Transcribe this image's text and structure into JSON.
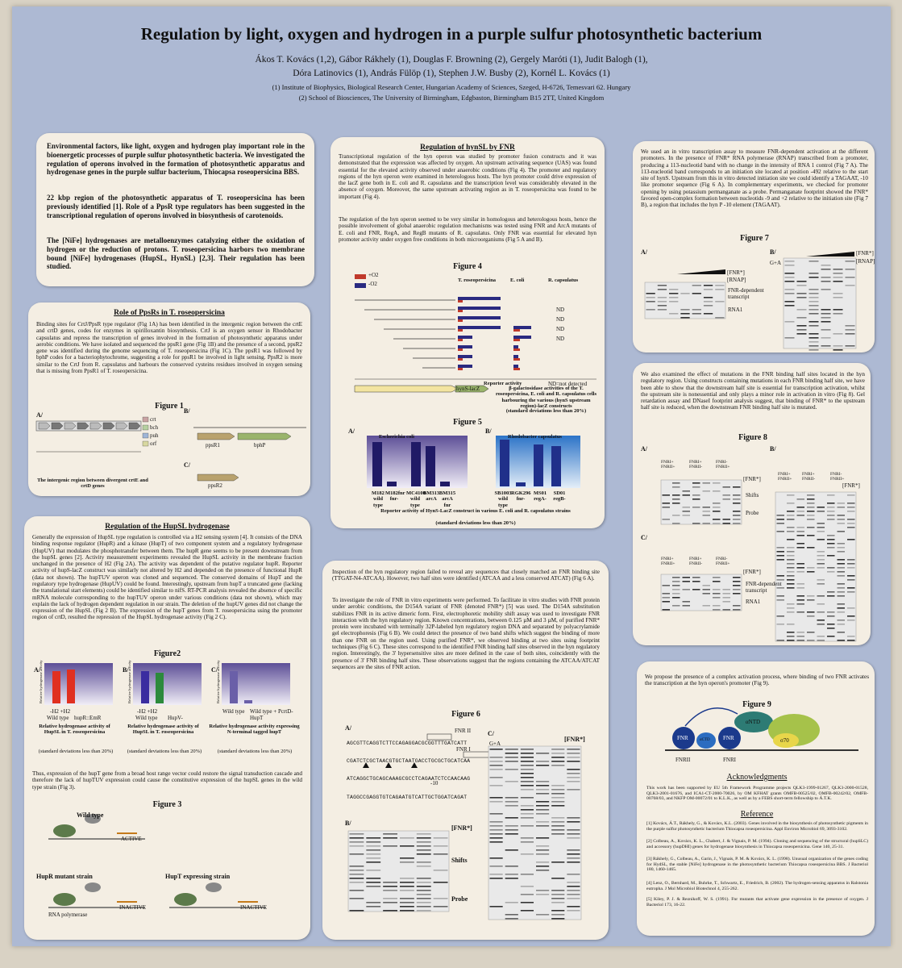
{
  "header": {
    "title": "Regulation by light, oxygen and hydrogen in a purple sulfur photosynthetic bacterium",
    "authors_line1": "Ákos T. Kovács (1,2), Gábor Rákhely (1), Douglas F. Browning (2), Gergely Maróti (1), Judit Balogh (1),",
    "authors_line2": "Dóra Latinovics (1), András Fülöp (1), Stephen J.W. Busby (2), Kornél L. Kovács (1)",
    "affiliation1": "(1) Institute of Biophysics, Biological Research Center, Hungarian Academy of Sciences, Szeged, H-6726, Temesvari 62. Hungary",
    "affiliation2": "(2) School of Biosciences, The University of Birmingham, Edgbaston, Birmingham B15 2TT, United Kingdom"
  },
  "intro": {
    "paragraphs": [
      "Environmental factors, like light, oxygen and hydrogen play important role in the bioenergetic processes of purple sulfur photosynthetic bacteria. We investigated the regulation of operons involved in the formation of photosynthetic apparatus and hydrogenase genes in the purple sulfur bacterium, Thiocapsa roseopersicina BBS.",
      "22 kbp region of the photosynthetic apparatus of T. roseopersicina has been previously identified [1]. Role of a PpsR type regulators has been suggested in the transcriptional regulation of operons involved in biosynthesis of carotenoids.",
      "The [NiFe] hydrogenases are metalloenzymes catalyzing either the oxidation of hydrogen or the reduction of protons. T. roseopersicina harbors two membrane bound [NiFe] hydrogenases (HupSL, HynSL) [2,3]. Their regulation has been studied."
    ]
  },
  "ppsr": {
    "heading": "Role of PpsRs in T. roseopersicina",
    "text": "Binding sites for CrtJ/PpsR type regulator (Fig 1A) has been identified in the intergenic region between the crtE and crtD genes, codes for enzymes in spirilloxantin biosynthesis. CrtJ is an oxygen sensor in Rhodobacter capsulatus and repress the transcription of genes involved in the formation of photosynthetic apparatus under aerobic conditions. We have isolated and sequenced the ppsR1 gene (Fig 1B) and the presence of a second, ppsR2 gene was identified during the genome sequencing of T. roseopersicina (Fig 1C). The ppsR1 was followed by bphP codes for a bacteriophytochrome, suggesting a role for ppsR1 be involved in light sensing. PpsR2 is more similar to the CrtJ from R. capsulatus and harbours the conserved cysteins residues involved in oxygen sensing that is missing from PpsR1 of T. roseopersicina.",
    "figure": {
      "title": "Figure 1",
      "labels": [
        "A/",
        "B/",
        "C/",
        "ppsR1",
        "bphP",
        "ppsR2",
        "crt",
        "bch",
        "puh",
        "orf"
      ],
      "caption": "The intergenic region between divergent crtE and crtD genes"
    }
  },
  "hupsl": {
    "heading": "Regulation of the HupSL hydrogenase",
    "text": "Generally the expression of HupSL type regulation is controlled via a H2 sensing system [4]. It consists of the DNA binding response regulator (HupR) and a kinase (HupT) of two component system and a regulatory hydrogenase (HupUV) that modulates the phosphotransfer between them. The hupR gene seems to be present downstream from the hupSL genes [2]. Activity measurement experiments revealed the HupSL activity in the membrane fraction unchanged in the presence of H2 (Fig 2A). The activity was dependent of the putative regulator hupR. Reporter activity of hupS-lacZ construct was similarly not altered by H2 and depended on the presence of functional HupR (data not shown). The hupTUV operon was cloned and sequenced. The conserved domains of HupT and the regulatory type hydrogenase (HupUV) could be found. Interestingly, upstream from hupT a truncated gene (lacking the translational start elements) could be identified similar to nifS. RT-PCR analysis revealed the absence of specific mRNA molecule corresponding to the hupTUV operon under various conditions (data not shown), which may explain the lack of hydrogen dependent regulation in our strain. The deletion of the hupUV genes did not change the expression of the HupSL (Fig 2 B). The expression of the hupT genes from T. roseopersicina using the promoter region of crtD, resulted the repression of the HupSL hydrogenase activity (Fig 2 C).",
    "figure2": {
      "title": "Figure2",
      "labels": [
        "A/",
        "B/",
        "C/",
        "-H2 +H2",
        "-H2 +H2",
        "Wild type",
        "hupR::EmR",
        "Wild type",
        "HupV-",
        "Wild type",
        "Wild type + PcrtD-HupT"
      ],
      "axis": "Relative hydrogenase activity",
      "captions": [
        "Relative hydrogenase activity of HupSL in T. roseopersicina",
        "Relative hydrogenase activity of HupSL in T. roseopersicina",
        "Relative hydrogenase activity expressing N-terminal tagged hupT"
      ],
      "note": "(standard deviations less than 20%)"
    },
    "text2": "Thus, expression of the hupT gene from a broad host range vector could restore the signal transduction cascade and therefore the lack of hupTUV expression could cause the constitutive expression of the hupSL genes in the wild type strain (Fig 3).",
    "figure3": {
      "title": "Figure 3",
      "labels": [
        "Wild type",
        "HupR mutant strain",
        "HupT expressing strain",
        "ACTIVE",
        "INACTIVE",
        "INACTIVE",
        "RNA polymerase"
      ]
    }
  },
  "hynsl": {
    "heading": "Regulation of hynSL by FNR",
    "paragraphs": [
      "Transcriptional regulation of the hyn operon was studied by promoter fusion constructs and it was demonstrated that the expression was affected by oxygen. An upstream activating sequence (UAS) was found essential for the elevated activity observed under anaerobic conditions (Fig 4). The promoter and regulatory regions of the hyn operon were examined in heterologous hosts. The hyn promoter could drive expression of the lacZ gene both in E. coli and R. capsulatus and the transcription level was considerably elevated in the absence of oxygen. Moreover, the same upstream activating region as in T. roseopersicina was found to be important (Fig 4).",
      "The regulation of the hyn operon seemed to be very similar in homologous and heterologous hosts, hence the possible involvement of global anaerobic regulation mechanisms was tested using FNR and ArcA mutants of E. coli and FNR, RegA, and RegB mutants of R. capsulatus. Only FNR was essential for elevated hyn promoter activity under oxygen free conditions in both microorganisms (Fig 5 A and B)."
    ],
    "figure4": {
      "title": "Figure 4",
      "legend": [
        "+O2",
        "-O2"
      ],
      "columns": [
        "T. roseopersicina",
        "E. coli",
        "R. capsulatus"
      ],
      "nd": "ND",
      "axis": "Reporter activity",
      "nd_note": "ND=not detected",
      "construct": "hynS-lacZ",
      "caption": "β-galactosidase activities of the T. roseopersicina, E. coli and R. capsulatus cells harbouring the various (hynS upstream region)-lacZ constructs",
      "note": "(standard deviations less than 20%)"
    },
    "figure5": {
      "title": "Figure 5",
      "labels": [
        "A/",
        "B/"
      ],
      "panels": [
        "Escherichia coli",
        "Rhodobacter capsulatus"
      ],
      "strains_a": [
        "M182 wild type",
        "M182fnr fnr-",
        "MC4100 wild type",
        "BM313 arcA",
        "BM315 arcA fnr"
      ],
      "strains_b": [
        "SB1003 wild type",
        "RGK296 fnr-",
        "MS01 regA-",
        "SD01 regB-"
      ],
      "caption": "Reporter activity of HynS-LacZ construct in various E. coli and R. capsulatus strains",
      "note": "(standard deviations less than 20%)"
    }
  },
  "fnr_binding": {
    "paragraphs": [
      "Inspection of the hyn regulatory region failed to reveal any sequences that closely matched an FNR binding site (TTGAT-N4-ATCAA). However, two half sites were identified (ATCAA and a less conserved ATCAT) (Fig 6 A).",
      "To investigate the role of FNR in vitro experiments were performed. To facilitate in vitro studies with FNR protein under aerobic conditions, the D154A variant of FNR (denoted FNR*) [5] was used. The D154A substitution stabilizes FNR in its active dimeric form. First, electrophoretic mobility shift assay was used to investigate FNR interaction with the hyn regulatory region. Known concentrations, between 0.125 µM and 3 µM, of purified FNR* protein were incubated with terminally 32P-labeled hyn regulatory region DNA and separated by polyacrylamide gel electrophoresis (Fig 6 B). We could detect the presence of two band shifts which suggest the binding of more than one FNR on the region used. Using purified FNR*, we observed binding at two sites using footprint techniques (Fig 6 C). These sites correspond to the identified FNR binding half sites observed in the hyn regulatory region. Interestingly, the 3' hypersensitive sites are more defined in the case of both sites, coincidently with the presence of 3' FNR binding half sites. These observations suggest that the regions containing the ATCAA/ATCAT sequences are the sites of FNR action."
    ],
    "figure6": {
      "title": "Figure 6",
      "labels": [
        "A/",
        "B/",
        "C/",
        "FNR II",
        "FNR I",
        "-10",
        "[FNR*]",
        "Shifts",
        "Probe",
        "G+A"
      ],
      "sequences": [
        "AGCGTTCAGGTCTTCCAGAGGACGCGGTTTGATCATT",
        "CGATCTCGCTAACGTGCTAATGACCTGCGCTGCATCAA",
        "ATCAGGCTGCAGCAAAGCGCCTCAGAATCTCCAACAAG",
        "TAGGCCGAGGTGTCAGAATGTCATTGCTGGATCAGAT"
      ]
    }
  },
  "in_vitro": {
    "text": "We used an in vitro transcription assay to measure FNR-dependent activation at the different promoters. In the presence of FNR* RNA polymerase (RNAP) transcribed from a promoter, producing a 113-nucleotid band with no change in the intensity of RNA 1 control (Fig 7 A). The 113-nucleotid band corresponds to an initiation site located at position -492 relative to the start site of hynS. Upstream from this in vitro detected initiation site we could identify a TAGAAT, -10 like promoter sequence (Fig 6 A). In complementary experiments, we checked for promoter opening by using potassium permanganate as a probe. Permanganate footprint showed the FNR* favored open-complex formation between nucleotids -9 and +2 relative to the initiation site (Fig 7 B), a region that includes the hyn P -10 element (TAGAAT).",
    "figure7": {
      "title": "Figure 7",
      "labels": [
        "A/",
        "B/",
        "[FNR*]",
        "[RNAP]",
        "FNR-dependent transcript",
        "RNA1",
        "G+A"
      ]
    }
  },
  "mutations": {
    "text": "We also examined the effect of mutations in the FNR binding half sites located in the hyn regulatory region. Using constructs containing mutations in each FNR binding half site, we have been able to show that the downstream half site is essential for transcription activation, whilst the upstream site is nonessential and only plays a minor role in activation in vitro (Fig 8). Gel retardation assay and DNaseI footprint analysis suggest, that binding of FNR* to the upstream half site is reduced, when the downstream FNR binding half site is mutated.",
    "figure8": {
      "title": "Figure 8",
      "labels": [
        "A/",
        "B/",
        "C/",
        "FNRI+ FNRII+",
        "FNRI+ FNRII-",
        "FNRI- FNRII+",
        "[FNR*]",
        "Shifts",
        "Probe",
        "FNR-dependent transcript",
        "RNA1"
      ]
    }
  },
  "conclusion": {
    "text": "We propose the presence of a complex activation process, where binding of two FNR activates the transcription at the hyn operon's promoter (Fig 9).",
    "figure9": {
      "title": "Figure 9",
      "labels": [
        "FNR",
        "FNR",
        "αCTD",
        "αNTD",
        "σ70",
        "FNRII",
        "FNRI"
      ]
    },
    "acknowledgments": {
      "heading": "Acknowledgments",
      "text": "This work has been supported by EU 5th Framework Programme projects QLK3-1999-01267, QLK3-2000-01528, QLK3-2001-01676, and ICA1-CT-2000-70026, by OM KFHAT grants OMFB-00525/02, OMFB-00242/02, OMFB-00768/03, and NKFP OM-00072/01 to K.L.K., as well as by a FEBS short-term fellowship to Á.T.K."
    },
    "references": {
      "heading": "Reference",
      "items": [
        "[1] Kovács, Á.T., Rákhely, G., & Kovács, K.L. (2003). Genes involved in the biosynthesis of photosynthetic pigments in the purple sulfur photosynthetic bacterium Thiocapsa roseopersicina. Appl Environ Microbiol 69, 3093-3102.",
        "[2] Colbeau, A., Kovács, K. L., Chabert, J. & Vignais, P. M. (1994). Cloning and sequencing of the structural (hupSLC) and accessory (hupDHI) genes for hydrogenase biosynthesis in Thiocapsa roseopersicina. Gene 140, 25-31.",
        "[3] Rákhely, G., Colbeau, A., Garin, J., Vignais, P. M. & Kovács, K. L. (1998). Unusual organization of the genes coding for HydSL, the stable [NiFe] hydrogenase in the photosynthetic bacterium Thiocapsa roseopersicina BBS. J Bacteriol 180, 1460-1465.",
        "[4] Lenz, O., Bernhard, M., Buhrke, T., Schwartz, E., Friedrich, B. (2002). The hydrogen-sensing apparatus in Ralstonia eutropha. J Mol Microbiol Biotechnol 4, 255-262.",
        "[5] Kiley, P. J. & Reznikoff, W. S. (1991). Fnr mutants that activate gene expression in the presence of oxygen. J Bacteriol 173, 16-22."
      ]
    }
  }
}
